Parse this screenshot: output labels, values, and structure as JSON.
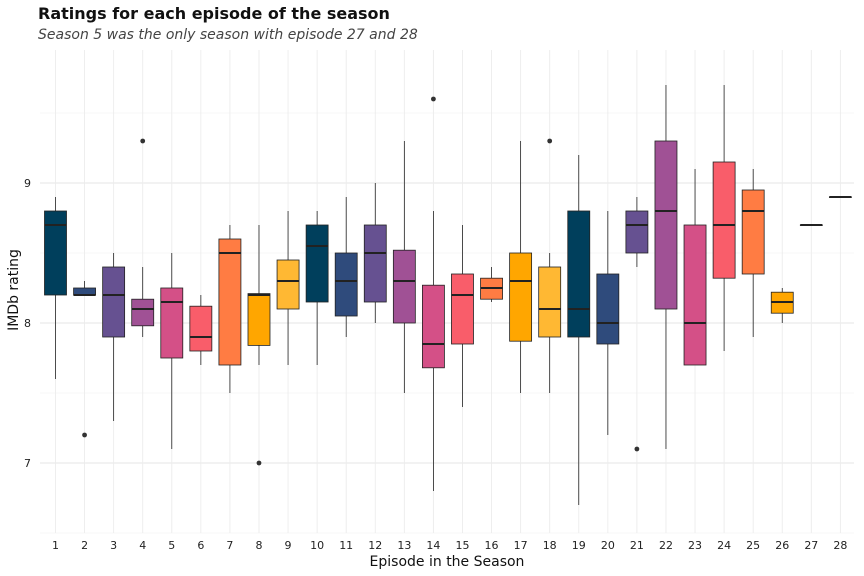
{
  "chart_data": {
    "type": "boxplot",
    "title": "Ratings for each episode of the season",
    "subtitle": "Season 5 was the only season with episode 27 and 28",
    "xlabel": "Episode in the Season",
    "ylabel": "IMDb rating",
    "ylim": [
      6.5,
      9.95
    ],
    "yticks": [
      7,
      8,
      9
    ],
    "grid": true,
    "legend": "none",
    "categories": [
      "1",
      "2",
      "3",
      "4",
      "5",
      "6",
      "7",
      "8",
      "9",
      "10",
      "11",
      "12",
      "13",
      "14",
      "15",
      "16",
      "17",
      "18",
      "19",
      "20",
      "21",
      "22",
      "23",
      "24",
      "25",
      "26",
      "27",
      "28"
    ],
    "boxes": [
      {
        "episode": "1",
        "whisker_low": 7.6,
        "q1": 8.2,
        "median": 8.7,
        "q3": 8.8,
        "whisker_high": 8.9,
        "outliers": [],
        "color": "#003f5c"
      },
      {
        "episode": "2",
        "whisker_low": 8.2,
        "q1": 8.2,
        "median": 8.2,
        "q3": 8.25,
        "whisker_high": 8.3,
        "outliers": [
          7.2
        ],
        "color": "#2f4b7c"
      },
      {
        "episode": "3",
        "whisker_low": 7.3,
        "q1": 7.9,
        "median": 8.2,
        "q3": 8.4,
        "whisker_high": 8.5,
        "outliers": [],
        "color": "#665191"
      },
      {
        "episode": "4",
        "whisker_low": 7.9,
        "q1": 7.98,
        "median": 8.1,
        "q3": 8.17,
        "whisker_high": 8.4,
        "outliers": [
          9.3
        ],
        "color": "#a05195"
      },
      {
        "episode": "5",
        "whisker_low": 7.1,
        "q1": 7.75,
        "median": 8.15,
        "q3": 8.25,
        "whisker_high": 8.5,
        "outliers": [],
        "color": "#d45087"
      },
      {
        "episode": "6",
        "whisker_low": 7.7,
        "q1": 7.8,
        "median": 7.9,
        "q3": 8.12,
        "whisker_high": 8.2,
        "outliers": [],
        "color": "#f95d6a"
      },
      {
        "episode": "7",
        "whisker_low": 7.5,
        "q1": 7.7,
        "median": 8.5,
        "q3": 8.6,
        "whisker_high": 8.7,
        "outliers": [],
        "color": "#ff7c43"
      },
      {
        "episode": "8",
        "whisker_low": 7.7,
        "q1": 7.84,
        "median": 8.2,
        "q3": 8.21,
        "whisker_high": 8.7,
        "outliers": [
          7.0
        ],
        "color": "#ffa600"
      },
      {
        "episode": "9",
        "whisker_low": 7.7,
        "q1": 8.1,
        "median": 8.3,
        "q3": 8.45,
        "whisker_high": 8.8,
        "outliers": [],
        "color": "#ffb833"
      },
      {
        "episode": "10",
        "whisker_low": 7.7,
        "q1": 8.15,
        "median": 8.55,
        "q3": 8.7,
        "whisker_high": 8.8,
        "outliers": [],
        "color": "#003f5c"
      },
      {
        "episode": "11",
        "whisker_low": 7.9,
        "q1": 8.05,
        "median": 8.3,
        "q3": 8.5,
        "whisker_high": 8.9,
        "outliers": [],
        "color": "#2f4b7c"
      },
      {
        "episode": "12",
        "whisker_low": 8.0,
        "q1": 8.15,
        "median": 8.5,
        "q3": 8.7,
        "whisker_high": 9.0,
        "outliers": [],
        "color": "#665191"
      },
      {
        "episode": "13",
        "whisker_low": 7.5,
        "q1": 8.0,
        "median": 8.3,
        "q3": 8.52,
        "whisker_high": 9.3,
        "outliers": [],
        "color": "#a05195"
      },
      {
        "episode": "14",
        "whisker_low": 6.8,
        "q1": 7.68,
        "median": 7.85,
        "q3": 8.27,
        "whisker_high": 8.8,
        "outliers": [
          9.6
        ],
        "color": "#d45087"
      },
      {
        "episode": "15",
        "whisker_low": 7.4,
        "q1": 7.85,
        "median": 8.2,
        "q3": 8.35,
        "whisker_high": 8.7,
        "outliers": [],
        "color": "#f95d6a"
      },
      {
        "episode": "16",
        "whisker_low": 8.15,
        "q1": 8.17,
        "median": 8.25,
        "q3": 8.32,
        "whisker_high": 8.4,
        "outliers": [],
        "color": "#ff7c43"
      },
      {
        "episode": "17",
        "whisker_low": 7.5,
        "q1": 7.87,
        "median": 8.3,
        "q3": 8.5,
        "whisker_high": 9.3,
        "outliers": [],
        "color": "#ffa600"
      },
      {
        "episode": "18",
        "whisker_low": 7.5,
        "q1": 7.9,
        "median": 8.1,
        "q3": 8.4,
        "whisker_high": 8.5,
        "outliers": [
          9.3
        ],
        "color": "#ffb833"
      },
      {
        "episode": "19",
        "whisker_low": 6.7,
        "q1": 7.9,
        "median": 8.1,
        "q3": 8.8,
        "whisker_high": 9.2,
        "outliers": [],
        "color": "#003f5c"
      },
      {
        "episode": "20",
        "whisker_low": 7.2,
        "q1": 7.85,
        "median": 8.0,
        "q3": 8.35,
        "whisker_high": 8.8,
        "outliers": [],
        "color": "#2f4b7c"
      },
      {
        "episode": "21",
        "whisker_low": 8.4,
        "q1": 8.5,
        "median": 8.7,
        "q3": 8.8,
        "whisker_high": 8.9,
        "outliers": [
          7.1
        ],
        "color": "#665191"
      },
      {
        "episode": "22",
        "whisker_low": 7.1,
        "q1": 8.1,
        "median": 8.8,
        "q3": 9.3,
        "whisker_high": 9.7,
        "outliers": [],
        "color": "#a05195"
      },
      {
        "episode": "23",
        "whisker_low": 7.7,
        "q1": 7.7,
        "median": 8.0,
        "q3": 8.7,
        "whisker_high": 9.1,
        "outliers": [],
        "color": "#d45087"
      },
      {
        "episode": "24",
        "whisker_low": 7.8,
        "q1": 8.32,
        "median": 8.7,
        "q3": 9.15,
        "whisker_high": 9.7,
        "outliers": [],
        "color": "#f95d6a"
      },
      {
        "episode": "25",
        "whisker_low": 7.9,
        "q1": 8.35,
        "median": 8.8,
        "q3": 8.95,
        "whisker_high": 9.1,
        "outliers": [],
        "color": "#ff7c43"
      },
      {
        "episode": "26",
        "whisker_low": 8.0,
        "q1": 8.07,
        "median": 8.15,
        "q3": 8.22,
        "whisker_high": 8.25,
        "outliers": [],
        "color": "#ffa600"
      },
      {
        "episode": "27",
        "whisker_low": 8.7,
        "q1": 8.7,
        "median": 8.7,
        "q3": 8.7,
        "whisker_high": 8.7,
        "outliers": [],
        "color": "#ffb833"
      },
      {
        "episode": "28",
        "whisker_low": 8.9,
        "q1": 8.9,
        "median": 8.9,
        "q3": 8.9,
        "whisker_high": 8.9,
        "outliers": [],
        "color": "#003f5c"
      }
    ]
  }
}
